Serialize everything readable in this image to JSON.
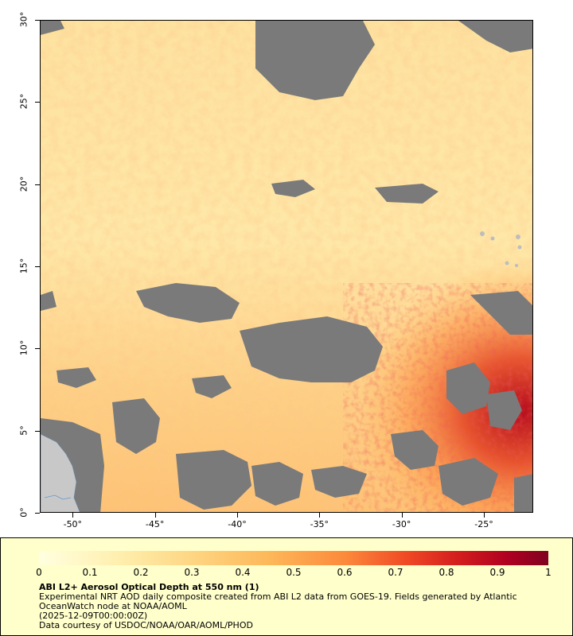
{
  "map": {
    "lat_labels": [
      "0°",
      "5°",
      "10°",
      "15°",
      "20°",
      "25°",
      "30°"
    ],
    "lon_labels": [
      "-50°",
      "-45°",
      "-40°",
      "-35°",
      "-30°",
      "-25°"
    ],
    "lat_range": [
      0,
      30
    ],
    "lon_range": [
      -52,
      -22
    ],
    "colors": {
      "no_data": "#7a7a7a",
      "land": "#c8c8c8",
      "low": "#fff0b0",
      "mid": "#fdb85a",
      "high": "#e0301e",
      "max": "#8b0020"
    }
  },
  "colorbar": {
    "tick_labels": [
      "0",
      "0.1",
      "0.2",
      "0.3",
      "0.4",
      "0.5",
      "0.6",
      "0.7",
      "0.8",
      "0.9",
      "1"
    ],
    "range": [
      0,
      1
    ]
  },
  "legend": {
    "title": "ABI L2+ Aerosol Optical Depth at 550 nm (1)",
    "line1": "Experimental NRT AOD daily composite created from ABI L2 data from GOES-19. Fields generated by Atlantic",
    "line2": "OceanWatch node at NOAA/AOML",
    "line3": "(2025-12-09T00:00:00Z)",
    "line4": "Data courtesy of USDOC/NOAA/OAR/AOML/PHOD"
  }
}
